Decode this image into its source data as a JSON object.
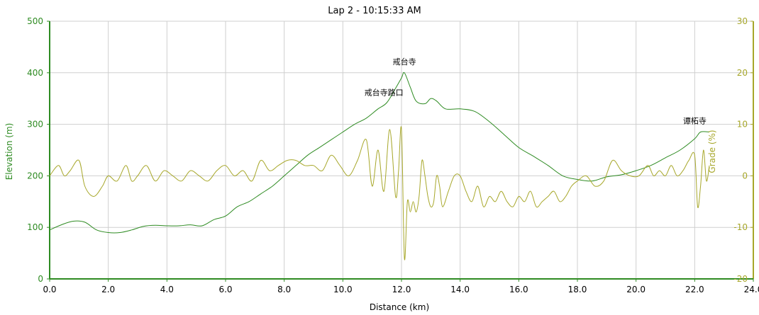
{
  "chart_data": {
    "type": "line",
    "title": "Lap 2 - 10:15:33 AM",
    "xlabel": "Distance (km)",
    "ylabel_left": "Elevation (m)",
    "ylabel_right": "Grade (%)",
    "xlim": [
      0,
      24
    ],
    "ylim_left": [
      0,
      500
    ],
    "ylim_right": [
      -20,
      30
    ],
    "grid": true,
    "x_ticks": [
      "0.0",
      "2.0",
      "4.0",
      "6.0",
      "8.0",
      "10.0",
      "12.0",
      "14.0",
      "16.0",
      "18.0",
      "20.0",
      "22.0",
      "24.0"
    ],
    "y_left_ticks": [
      "0",
      "100",
      "200",
      "300",
      "400",
      "500"
    ],
    "y_right_ticks": [
      "-20",
      "-10",
      "0",
      "10",
      "20",
      "30"
    ],
    "colors": {
      "elevation": "#2e8b22",
      "grade": "#a7a72a"
    },
    "series": [
      {
        "name": "Elevation",
        "axis": "left",
        "x": [
          0,
          0.4,
          0.8,
          1.2,
          1.6,
          2.0,
          2.4,
          2.8,
          3.2,
          3.6,
          4.0,
          4.4,
          4.8,
          5.2,
          5.6,
          6.0,
          6.4,
          6.8,
          7.2,
          7.6,
          8.0,
          8.4,
          8.8,
          9.2,
          9.6,
          10.0,
          10.4,
          10.8,
          11.2,
          11.5,
          11.8,
          12.0,
          12.1,
          12.3,
          12.5,
          12.8,
          13.0,
          13.2,
          13.5,
          14.0,
          14.5,
          15.0,
          15.5,
          16.0,
          16.5,
          17.0,
          17.5,
          18.0,
          18.5,
          19.0,
          19.5,
          20.0,
          20.5,
          21.0,
          21.5,
          22.0,
          22.2,
          22.5
        ],
        "values": [
          95,
          105,
          112,
          110,
          95,
          90,
          90,
          95,
          102,
          104,
          103,
          103,
          105,
          103,
          115,
          122,
          140,
          150,
          165,
          180,
          200,
          220,
          240,
          255,
          270,
          285,
          300,
          312,
          330,
          342,
          370,
          390,
          400,
          372,
          345,
          340,
          350,
          345,
          330,
          330,
          325,
          305,
          280,
          255,
          238,
          220,
          200,
          193,
          190,
          198,
          202,
          210,
          220,
          235,
          250,
          272,
          285,
          285
        ]
      },
      {
        "name": "Grade",
        "axis": "right",
        "x": [
          0,
          0.3,
          0.5,
          0.7,
          1.0,
          1.2,
          1.5,
          1.8,
          2.0,
          2.3,
          2.6,
          2.8,
          3.0,
          3.3,
          3.6,
          3.9,
          4.2,
          4.5,
          4.8,
          5.1,
          5.4,
          5.7,
          6.0,
          6.3,
          6.6,
          6.9,
          7.2,
          7.5,
          7.8,
          8.1,
          8.4,
          8.7,
          9.0,
          9.3,
          9.6,
          9.9,
          10.2,
          10.5,
          10.8,
          11.0,
          11.2,
          11.4,
          11.6,
          11.8,
          11.9,
          12.0,
          12.1,
          12.2,
          12.3,
          12.4,
          12.5,
          12.6,
          12.7,
          12.8,
          12.9,
          13.0,
          13.1,
          13.2,
          13.3,
          13.4,
          13.6,
          13.8,
          14.0,
          14.2,
          14.4,
          14.6,
          14.8,
          15.0,
          15.2,
          15.4,
          15.6,
          15.8,
          16.0,
          16.2,
          16.4,
          16.6,
          16.8,
          17.0,
          17.2,
          17.4,
          17.6,
          17.8,
          18.0,
          18.3,
          18.6,
          18.9,
          19.2,
          19.5,
          19.8,
          20.1,
          20.4,
          20.6,
          20.8,
          21.0,
          21.2,
          21.4,
          21.6,
          21.8,
          22.0,
          22.1,
          22.2,
          22.3,
          22.4,
          22.5
        ],
        "values": [
          0,
          2,
          0,
          1,
          3,
          -2,
          -4,
          -2,
          0,
          -1,
          2,
          -1,
          0,
          2,
          -1,
          1,
          0,
          -1,
          1,
          0,
          -1,
          1,
          2,
          0,
          1,
          -1,
          3,
          1,
          2,
          3,
          3,
          2,
          2,
          1,
          4,
          2,
          0,
          3,
          7,
          -2,
          5,
          -3,
          9,
          -4,
          1,
          9,
          -16,
          -5,
          -7,
          -5,
          -7,
          -4,
          3,
          0,
          -4,
          -6,
          -5,
          0,
          -2,
          -6,
          -3,
          0,
          0,
          -3,
          -5,
          -2,
          -6,
          -4,
          -5,
          -3,
          -5,
          -6,
          -4,
          -5,
          -3,
          -6,
          -5,
          -4,
          -3,
          -5,
          -4,
          -2,
          -1,
          0,
          -2,
          -1,
          3,
          1,
          0,
          0,
          2,
          0,
          1,
          0,
          2,
          0,
          1,
          3,
          4,
          -6,
          -2,
          5,
          -1,
          2
        ]
      }
    ],
    "annotations": [
      {
        "text": "戒台寺",
        "x": 12.1,
        "y": 400
      },
      {
        "text": "戒台寺路口",
        "x": 11.4,
        "y": 340
      },
      {
        "text": "谭柘寺",
        "x": 22.0,
        "y": 285
      }
    ]
  }
}
